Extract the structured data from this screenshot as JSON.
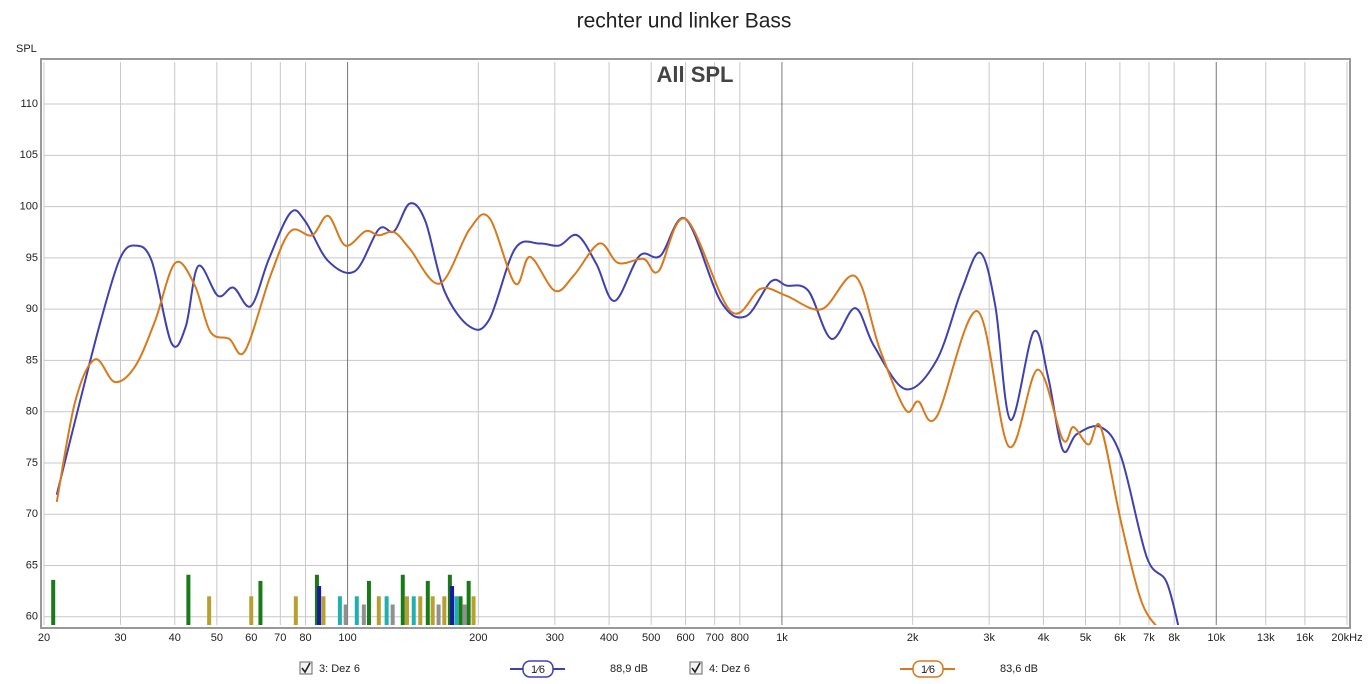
{
  "chart_data": {
    "type": "line",
    "title": "rechter und linker Bass",
    "subtitle": "All SPL",
    "y_label": "SPL",
    "x_scale": "log",
    "grid": true,
    "xlim": [
      20,
      20000
    ],
    "ylim": [
      59.2,
      114.1
    ],
    "xticks": [
      20,
      30,
      40,
      50,
      60,
      70,
      80,
      100,
      200,
      300,
      400,
      500,
      600,
      700,
      800,
      {
        "value": 1000,
        "label": "1k"
      },
      {
        "value": 2000,
        "label": "2k"
      },
      {
        "value": 3000,
        "label": "3k"
      },
      {
        "value": 4000,
        "label": "4k"
      },
      {
        "value": 5000,
        "label": "5k"
      },
      {
        "value": 6000,
        "label": "6k"
      },
      {
        "value": 7000,
        "label": "7k"
      },
      {
        "value": 8000,
        "label": "8k"
      },
      {
        "value": 10000,
        "label": "10k"
      },
      {
        "value": 13000,
        "label": "13k"
      },
      {
        "value": 16000,
        "label": "16k"
      },
      {
        "value": 20000,
        "label": "20kHz"
      }
    ],
    "yticks": [
      60,
      65,
      70,
      75,
      80,
      85,
      90,
      95,
      100,
      105,
      110
    ],
    "series": [
      {
        "name": "3: Dez 6",
        "color": "#4040b0",
        "smoothing": "1⁄6",
        "level": "88,9 dB",
        "x": [
          21.4,
          24.2,
          27.0,
          29.9,
          32.4,
          35.4,
          39.3,
          42.4,
          45.3,
          50.3,
          54.6,
          59.9,
          65.9,
          73.9,
          79.8,
          90.2,
          104,
          118,
          128,
          139,
          151,
          167,
          191,
          212,
          243,
          277,
          307,
          338,
          374,
          412,
          470,
          525,
          600,
          722,
          826,
          944,
          1024,
          1150,
          1300,
          1475,
          1630,
          1925,
          2270,
          2590,
          2860,
          3100,
          3360,
          3800,
          4100,
          4430,
          4770,
          5420,
          6040,
          6920,
          7700,
          8340
        ],
        "values": [
          71.9,
          81.0,
          88.8,
          94.9,
          96.2,
          94.7,
          86.7,
          88.3,
          94.2,
          91.3,
          92.1,
          90.3,
          94.9,
          99.4,
          98.6,
          94.7,
          93.7,
          97.8,
          97.6,
          100.3,
          98.6,
          91.8,
          88.3,
          89.0,
          95.9,
          96.4,
          96.2,
          97.2,
          94.4,
          90.8,
          95.2,
          95.2,
          98.8,
          90.8,
          89.3,
          92.7,
          92.3,
          91.8,
          87.1,
          90.1,
          86.4,
          82.2,
          85.0,
          91.8,
          95.5,
          90.3,
          79.2,
          87.8,
          83.4,
          76.3,
          77.8,
          78.5,
          75.6,
          65.8,
          63.3,
          57.5
        ]
      },
      {
        "name": "4: Dez 6",
        "color": "#d87a1c",
        "smoothing": "1⁄6",
        "level": "83,6 dB",
        "x": [
          21.4,
          23.6,
          26.2,
          29.1,
          32.4,
          36.0,
          40.1,
          44.5,
          48.3,
          53.4,
          58.0,
          66.5,
          73.9,
          82.8,
          90.2,
          98.8,
          110,
          118,
          128,
          139,
          163,
          191,
          212,
          243,
          263,
          300,
          332,
          380,
          420,
          480,
          520,
          600,
          762,
          895,
          1024,
          1235,
          1475,
          1680,
          1925,
          2060,
          2270,
          2820,
          3330,
          3880,
          4430,
          4690,
          5080,
          5420,
          6040,
          6740,
          7460
        ],
        "values": [
          71.2,
          81.0,
          85.1,
          82.9,
          84.4,
          88.8,
          94.5,
          92.3,
          87.8,
          87.1,
          85.9,
          93.3,
          97.6,
          97.2,
          99.1,
          96.2,
          97.6,
          97.2,
          97.5,
          95.9,
          92.5,
          97.8,
          98.9,
          92.5,
          95.1,
          91.8,
          93.3,
          96.4,
          94.5,
          94.9,
          93.7,
          98.8,
          89.8,
          92.0,
          91.3,
          90.0,
          93.2,
          86.1,
          80.2,
          81.0,
          79.5,
          89.8,
          76.6,
          84.1,
          77.3,
          78.5,
          76.8,
          78.5,
          69.2,
          61.4,
          58.6
        ]
      }
    ],
    "markers": {
      "x": [
        21,
        43,
        48,
        60,
        63,
        76,
        85,
        86,
        88,
        96,
        99,
        105,
        109,
        112,
        118,
        123,
        127,
        134,
        137,
        142,
        147,
        153,
        157,
        162,
        167,
        172,
        174,
        178,
        182,
        186,
        190,
        195
      ],
      "values": [
        63.6,
        64.1,
        62,
        62,
        63.5,
        62,
        64.1,
        63,
        62,
        62,
        61.2,
        62,
        61.2,
        63.5,
        62,
        62,
        61.2,
        64.1,
        62,
        62,
        62,
        63.5,
        62,
        61.2,
        62,
        64.1,
        63,
        62,
        62,
        61.2,
        63.5,
        62
      ],
      "colors": [
        "#1a7a1a",
        "#1a7a1a",
        "#b8a030",
        "#b8a030",
        "#1a7a1a",
        "#b8a030",
        "#1a7a1a",
        "#1a1aa0",
        "#b8a030",
        "#20b0b0",
        "#909090",
        "#20b0b0",
        "#909090",
        "#1a7a1a",
        "#b8a030",
        "#20b0b0",
        "#909090",
        "#1a7a1a",
        "#b8a030",
        "#20b0b0",
        "#b8a030",
        "#1a7a1a",
        "#b8a030",
        "#909090",
        "#b8a030",
        "#1a7a1a",
        "#1a1aa0",
        "#20b0b0",
        "#1a7a1a",
        "#909090",
        "#1a7a1a",
        "#b8a030"
      ]
    }
  }
}
